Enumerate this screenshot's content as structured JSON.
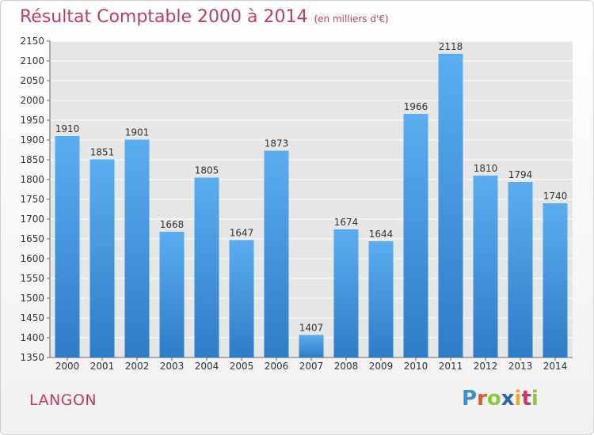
{
  "header": {
    "title": "Résultat Comptable 2000 à 2014",
    "subtitle": "(en milliers d'€)"
  },
  "footer": {
    "place": "LANGON",
    "logo_letters": [
      "P",
      "r",
      "o",
      "x",
      "i",
      "t",
      "i"
    ],
    "logo_colors": [
      "#3a8fd1",
      "#e05b2c",
      "#8cc63f",
      "#2a66b2",
      "#f2a81d",
      "#d3326e",
      "#8cc63f"
    ]
  },
  "colors": {
    "bar_top": "#5aaef0",
    "bar_bottom": "#2f7cc8",
    "title": "#c03c63"
  },
  "chart_data": {
    "type": "bar",
    "title": "Résultat Comptable 2000 à 2014",
    "subtitle": "(en milliers d'€)",
    "categories": [
      "2000",
      "2001",
      "2002",
      "2003",
      "2004",
      "2005",
      "2006",
      "2007",
      "2008",
      "2009",
      "2010",
      "2011",
      "2012",
      "2013",
      "2014"
    ],
    "values": [
      1910,
      1851,
      1901,
      1668,
      1805,
      1647,
      1873,
      1407,
      1674,
      1644,
      1966,
      2118,
      1810,
      1794,
      1740
    ],
    "ylim": [
      1350,
      2150
    ],
    "yticks": [
      1350,
      1400,
      1450,
      1500,
      1550,
      1600,
      1650,
      1700,
      1750,
      1800,
      1850,
      1900,
      1950,
      2000,
      2050,
      2100,
      2150
    ],
    "grid": true,
    "xlabel": "",
    "ylabel": ""
  }
}
